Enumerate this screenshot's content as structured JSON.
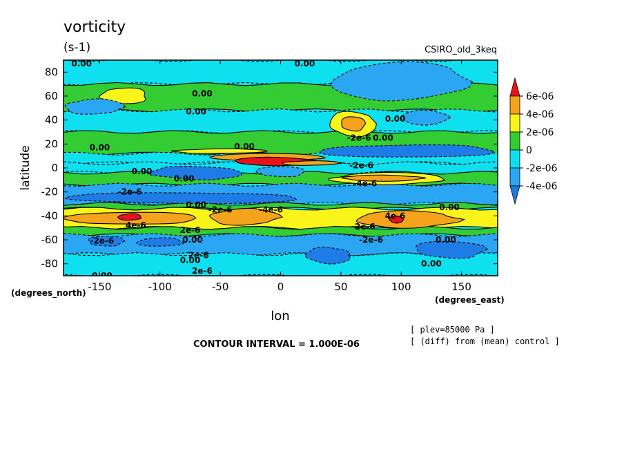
{
  "chart_data": {
    "type": "heatmap",
    "title": "vorticity",
    "units": "(s-1)",
    "model_label": "CSIRO_old_3keq",
    "xlabel": "lon",
    "ylabel": "latitude",
    "x_units": "(degrees_east)",
    "y_units": "(degrees_north)",
    "xlim": [
      -180,
      180
    ],
    "ylim": [
      -90,
      90
    ],
    "x_ticks": [
      -150,
      -100,
      -50,
      0,
      50,
      100,
      150
    ],
    "y_ticks": [
      -80,
      -60,
      -40,
      -20,
      0,
      20,
      40,
      60,
      80
    ],
    "x_tick_labels": [
      "-150",
      "-100",
      "-50",
      "0",
      "50",
      "100",
      "150"
    ],
    "y_tick_labels": [
      "-80",
      "-60",
      "-40",
      "-20",
      "0",
      "20",
      "40",
      "60",
      "80"
    ],
    "colorbar": {
      "labels": [
        "6e-06",
        "4e-06",
        "2e-06",
        "0",
        "-2e-06",
        "-4e-06"
      ],
      "bands": [
        {
          "min": 6e-06,
          "max": null,
          "color": "#e8131a"
        },
        {
          "min": 4e-06,
          "max": 6e-06,
          "color": "#f5a31c"
        },
        {
          "min": 2e-06,
          "max": 4e-06,
          "color": "#f9f51b"
        },
        {
          "min": 0,
          "max": 2e-06,
          "color": "#33cc33"
        },
        {
          "min": -2e-06,
          "max": 0,
          "color": "#0ee0f0"
        },
        {
          "min": -4e-06,
          "max": -2e-06,
          "color": "#2ba6f2"
        },
        {
          "min": null,
          "max": -4e-06,
          "color": "#1f7be5"
        }
      ]
    },
    "contour_interval": "CONTOUR INTERVAL = 1.000E-06",
    "level_note": "[ plev=85000 Pa ]",
    "diff_note": "[ (diff) from (mean) control ]",
    "zones": [
      {
        "lat": [
          70,
          90
        ],
        "value": -1.2e-06
      },
      {
        "lat": [
          48,
          70
        ],
        "value": 6e-07
      },
      {
        "lat": [
          30,
          48
        ],
        "value": -1e-06
      },
      {
        "lat": [
          12,
          30
        ],
        "value": 8e-07
      },
      {
        "lat": [
          4,
          12
        ],
        "value": -1.5e-06
      },
      {
        "lat": [
          -4,
          4
        ],
        "value": -8e-07
      },
      {
        "lat": [
          -14,
          -4
        ],
        "value": 9e-07
      },
      {
        "lat": [
          -30,
          -14
        ],
        "value": -2.6e-06
      },
      {
        "lat": [
          -34,
          -30
        ],
        "value": 8e-07
      },
      {
        "lat": [
          -50,
          -34
        ],
        "value": 2.8e-06
      },
      {
        "lat": [
          -56,
          -50
        ],
        "value": 8e-07
      },
      {
        "lat": [
          -72,
          -56
        ],
        "value": -2.5e-06
      },
      {
        "lat": [
          -90,
          -72
        ],
        "value": -9e-07
      }
    ],
    "features": [
      {
        "lon": [
          -180,
          -70
        ],
        "lat": [
          -48,
          -36
        ],
        "value": 4.5e-06
      },
      {
        "lon": [
          -135,
          -115
        ],
        "lat": [
          -44,
          -38
        ],
        "value": 6.5e-06
      },
      {
        "lon": [
          -60,
          0
        ],
        "lat": [
          -48,
          -34
        ],
        "value": 4.6e-06
      },
      {
        "lon": [
          60,
          150
        ],
        "lat": [
          -50,
          -36
        ],
        "value": 4.6e-06
      },
      {
        "lon": [
          90,
          102
        ],
        "lat": [
          -46,
          -40
        ],
        "value": 6.5e-06
      },
      {
        "lon": [
          -180,
          20
        ],
        "lat": [
          -30,
          -20
        ],
        "value": -4.3e-06
      },
      {
        "lon": [
          -160,
          -130
        ],
        "lat": [
          -66,
          -56
        ],
        "value": -4.3e-06
      },
      {
        "lon": [
          -120,
          -80
        ],
        "lat": [
          -66,
          -58
        ],
        "value": -4.3e-06
      },
      {
        "lon": [
          -90,
          -10
        ],
        "lat": [
          12,
          16
        ],
        "value": 2.6e-06
      },
      {
        "lon": [
          -60,
          40
        ],
        "lat": [
          6,
          12
        ],
        "value": 4.6e-06
      },
      {
        "lon": [
          -40,
          30
        ],
        "lat": [
          2,
          9
        ],
        "value": 6.5e-06
      },
      {
        "lon": [
          -110,
          -30
        ],
        "lat": [
          -10,
          2
        ],
        "value": -4.3e-06
      },
      {
        "lon": [
          -20,
          20
        ],
        "lat": [
          -8,
          2
        ],
        "value": -2.8e-06
      },
      {
        "lon": [
          30,
          180
        ],
        "lat": [
          8,
          20
        ],
        "value": -4.3e-06
      },
      {
        "lon": [
          0,
          50
        ],
        "lat": [
          2,
          6
        ],
        "value": 4.6e-06
      },
      {
        "lon": [
          40,
          140
        ],
        "lat": [
          -14,
          -4
        ],
        "value": 2.6e-06
      },
      {
        "lon": [
          50,
          120
        ],
        "lat": [
          -11,
          -6
        ],
        "value": 4.6e-06
      },
      {
        "lon": [
          40,
          80
        ],
        "lat": [
          26,
          48
        ],
        "value": 2.6e-06
      },
      {
        "lon": [
          50,
          70
        ],
        "lat": [
          30,
          44
        ],
        "value": 4.6e-06
      },
      {
        "lon": [
          -150,
          -110
        ],
        "lat": [
          52,
          68
        ],
        "value": 2.6e-06
      },
      {
        "lon": [
          -180,
          -130
        ],
        "lat": [
          44,
          58
        ],
        "value": -2.5e-06
      },
      {
        "lon": [
          40,
          160
        ],
        "lat": [
          56,
          88
        ],
        "value": -2.5e-06
      },
      {
        "lon": [
          100,
          140
        ],
        "lat": [
          36,
          48
        ],
        "value": -2.5e-06
      },
      {
        "lon": [
          20,
          60
        ],
        "lat": [
          -80,
          -66
        ],
        "value": -4.3e-06
      },
      {
        "lon": [
          110,
          170
        ],
        "lat": [
          -76,
          -60
        ],
        "value": -4.3e-06
      }
    ],
    "contour_labels": [
      {
        "text": "0.00",
        "lon": -165,
        "lat": 87
      },
      {
        "text": "0.00",
        "lon": 20,
        "lat": 87
      },
      {
        "text": "0.00",
        "lon": -65,
        "lat": 62
      },
      {
        "text": "0.00",
        "lon": -70,
        "lat": 47
      },
      {
        "text": "0.00",
        "lon": 95,
        "lat": 41
      },
      {
        "text": "-2e-6",
        "lon": 65,
        "lat": 25
      },
      {
        "text": "0.00",
        "lon": 85,
        "lat": 25
      },
      {
        "text": "0.00",
        "lon": -150,
        "lat": 17
      },
      {
        "text": "0.00",
        "lon": -30,
        "lat": 18
      },
      {
        "text": "-2e-6",
        "lon": 67,
        "lat": 2
      },
      {
        "text": "0.00",
        "lon": -115,
        "lat": -3
      },
      {
        "text": "0.00",
        "lon": -80,
        "lat": -9
      },
      {
        "text": "-4e-6",
        "lon": 70,
        "lat": -13
      },
      {
        "text": "-2e-6",
        "lon": -125,
        "lat": -20
      },
      {
        "text": "0.00",
        "lon": -70,
        "lat": -31
      },
      {
        "text": "-2e-6",
        "lon": -50,
        "lat": -35
      },
      {
        "text": "-4e-6",
        "lon": -8,
        "lat": -35
      },
      {
        "text": "0.00",
        "lon": 140,
        "lat": -33
      },
      {
        "text": "4e-6",
        "lon": 95,
        "lat": -40
      },
      {
        "text": "4e-6",
        "lon": -120,
        "lat": -48
      },
      {
        "text": "2e-6",
        "lon": -75,
        "lat": -52
      },
      {
        "text": "2e-6",
        "lon": 70,
        "lat": -49
      },
      {
        "text": "0.00",
        "lon": -73,
        "lat": -60
      },
      {
        "text": "-2e-6",
        "lon": 75,
        "lat": -60
      },
      {
        "text": "0.00",
        "lon": 137,
        "lat": -60
      },
      {
        "text": "-2e-6",
        "lon": -148,
        "lat": -61
      },
      {
        "text": "2e-6",
        "lon": -68,
        "lat": -73
      },
      {
        "text": "0.00",
        "lon": -75,
        "lat": -77
      },
      {
        "text": "0.00",
        "lon": 125,
        "lat": -80
      },
      {
        "text": "2e-6",
        "lon": -65,
        "lat": -86
      },
      {
        "text": "0.00",
        "lon": -148,
        "lat": -90
      }
    ]
  }
}
